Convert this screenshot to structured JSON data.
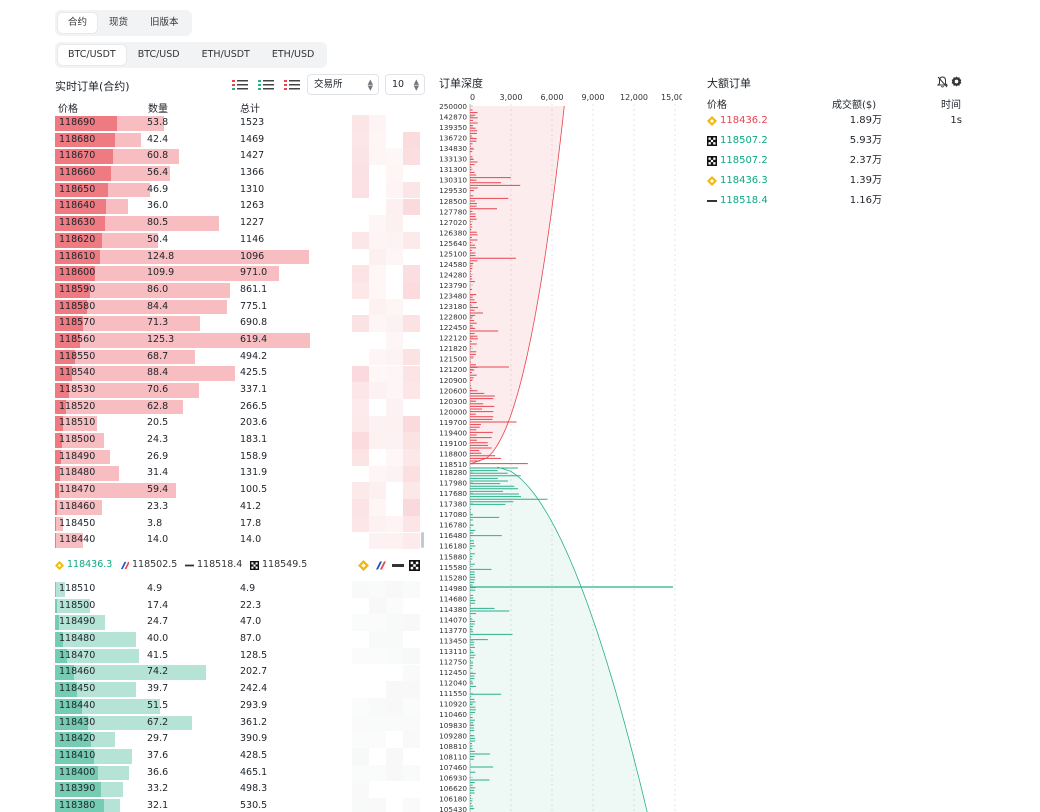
{
  "version_tabs": [
    "合约",
    "现货",
    "旧版本"
  ],
  "version_active": 0,
  "pair_tabs": [
    "BTC/USDT",
    "BTC/USD",
    "ETH/USDT",
    "ETH/USD"
  ],
  "pair_active": 0,
  "orderbook": {
    "title": "实时订单(合约)",
    "col_price": "价格",
    "col_qty": "数量",
    "col_total": "总计",
    "exchange_select": "交易所",
    "depth_select": "10",
    "asks": [
      [
        "118690",
        "53.8",
        "1523"
      ],
      [
        "118680",
        "42.4",
        "1469"
      ],
      [
        "118670",
        "60.8",
        "1427"
      ],
      [
        "118660",
        "56.4",
        "1366"
      ],
      [
        "118650",
        "46.9",
        "1310"
      ],
      [
        "118640",
        "36.0",
        "1263"
      ],
      [
        "118630",
        "80.5",
        "1227"
      ],
      [
        "118620",
        "50.4",
        "1146"
      ],
      [
        "118610",
        "124.8",
        "1096"
      ],
      [
        "118600",
        "109.9",
        "971.0"
      ],
      [
        "118590",
        "86.0",
        "861.1"
      ],
      [
        "118580",
        "84.4",
        "775.1"
      ],
      [
        "118570",
        "71.3",
        "690.8"
      ],
      [
        "118560",
        "125.3",
        "619.4"
      ],
      [
        "118550",
        "68.7",
        "494.2"
      ],
      [
        "118540",
        "88.4",
        "425.5"
      ],
      [
        "118530",
        "70.6",
        "337.1"
      ],
      [
        "118520",
        "62.8",
        "266.5"
      ],
      [
        "118510",
        "20.5",
        "203.6"
      ],
      [
        "118500",
        "24.3",
        "183.1"
      ],
      [
        "118490",
        "26.9",
        "158.9"
      ],
      [
        "118480",
        "31.4",
        "131.9"
      ],
      [
        "118470",
        "59.4",
        "100.5"
      ],
      [
        "118460",
        "23.3",
        "41.2"
      ],
      [
        "118450",
        "3.8",
        "17.8"
      ],
      [
        "118440",
        "14.0",
        "14.0"
      ]
    ],
    "bids": [
      [
        "118510",
        "4.9",
        "4.9"
      ],
      [
        "118500",
        "17.4",
        "22.3"
      ],
      [
        "118490",
        "24.7",
        "47.0"
      ],
      [
        "118480",
        "40.0",
        "87.0"
      ],
      [
        "118470",
        "41.5",
        "128.5"
      ],
      [
        "118460",
        "74.2",
        "202.7"
      ],
      [
        "118450",
        "39.7",
        "242.4"
      ],
      [
        "118440",
        "51.5",
        "293.9"
      ],
      [
        "118430",
        "67.2",
        "361.2"
      ],
      [
        "118420",
        "29.7",
        "390.9"
      ],
      [
        "118410",
        "37.6",
        "428.5"
      ],
      [
        "118400",
        "36.6",
        "465.1"
      ],
      [
        "118390",
        "33.2",
        "498.3"
      ],
      [
        "118380",
        "32.1",
        "530.5"
      ]
    ],
    "exchange_prices": [
      {
        "exchange_icon": "binance-icon",
        "price": "118436.3",
        "color": "#0ea882"
      },
      {
        "exchange_icon": "bybit-icon",
        "price": "118502.5",
        "color": "#333333"
      },
      {
        "exchange_icon": "bitget-icon",
        "price": "118518.4",
        "color": "#333333"
      },
      {
        "exchange_icon": "okx-icon",
        "price": "118549.5",
        "color": "#333333"
      }
    ]
  },
  "depth": {
    "title": "订单深度",
    "x_ticks": [
      "0",
      "3,000",
      "6,000",
      "9,000",
      "12,000",
      "15,000"
    ],
    "ask_ticks": [
      "250000",
      "142870",
      "139350",
      "136720",
      "134830",
      "133130",
      "131300",
      "130310",
      "129530",
      "128500",
      "127780",
      "127020",
      "126380",
      "125640",
      "125100",
      "124580",
      "124280",
      "123790",
      "123480",
      "123180",
      "122800",
      "122450",
      "122120",
      "121820",
      "121500",
      "121200",
      "120900",
      "120600",
      "120300",
      "120000",
      "119700",
      "119400",
      "119100",
      "118800",
      "118510"
    ],
    "bid_ticks": [
      "118280",
      "117980",
      "117680",
      "117380",
      "117080",
      "116780",
      "116480",
      "116180",
      "115880",
      "115580",
      "115280",
      "114980",
      "114680",
      "114380",
      "114070",
      "113770",
      "113450",
      "113110",
      "112750",
      "112450",
      "112040",
      "111550",
      "110920",
      "110460",
      "109830",
      "109280",
      "108810",
      "108110",
      "107460",
      "106930",
      "106620",
      "106180",
      "105430"
    ],
    "ask_color": "#e8434e",
    "bid_color": "#2ab08a"
  },
  "large_orders": {
    "title": "大额订单",
    "col_price": "价格",
    "col_amount": "成交额($)",
    "col_time": "时间",
    "rows": [
      {
        "exchange_icon": "binance-icon",
        "price": "118436.2",
        "amount": "1.89万",
        "time": "1s",
        "color": "#e8434e"
      },
      {
        "exchange_icon": "okx-icon",
        "price": "118507.2",
        "amount": "5.93万",
        "time": "",
        "color": "#0ea882"
      },
      {
        "exchange_icon": "okx-icon",
        "price": "118507.2",
        "amount": "2.37万",
        "time": "",
        "color": "#0ea882"
      },
      {
        "exchange_icon": "binance-icon",
        "price": "118436.3",
        "amount": "1.39万",
        "time": "",
        "color": "#0ea882"
      },
      {
        "exchange_icon": "bitget-icon",
        "price": "118518.4",
        "amount": "1.16万",
        "time": "",
        "color": "#0ea882"
      }
    ]
  }
}
